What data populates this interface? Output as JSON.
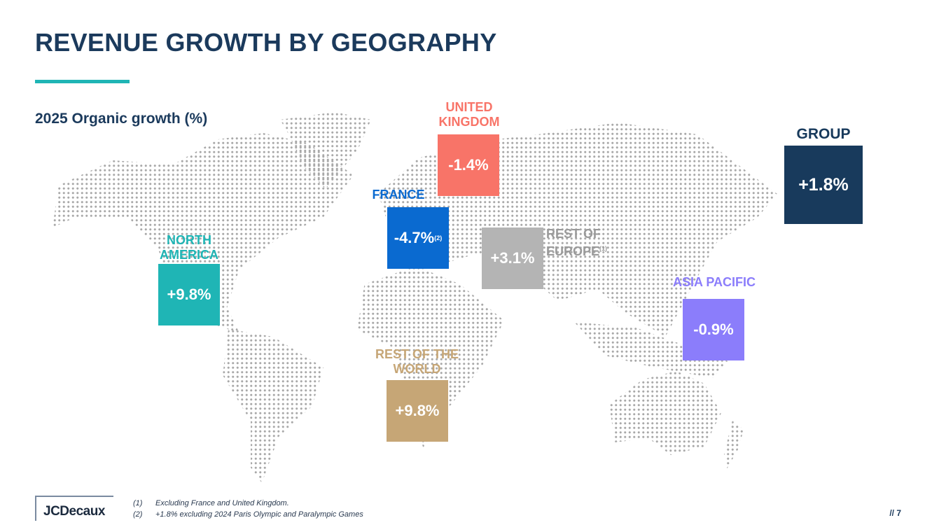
{
  "header": {
    "title": "REVENUE GROWTH BY GEOGRAPHY",
    "subtitle": "2025 Organic growth (%)"
  },
  "regions": [
    {
      "name": "UNITED KINGDOM",
      "value": "-1.4%",
      "note": "",
      "color": "#f87468"
    },
    {
      "name": "FRANCE",
      "value": "-4.7%",
      "note": "(2)",
      "color": "#0a6ad0"
    },
    {
      "name": "REST OF EUROPE",
      "value": "+3.1%",
      "note": "(1)",
      "color": "#b4b4b4",
      "label_color": "#9a9a9a"
    },
    {
      "name": "NORTH AMERICA",
      "value": "+9.8%",
      "note": "",
      "color": "#1fb5b5"
    },
    {
      "name": "ASIA PACIFIC",
      "value": "-0.9%",
      "note": "",
      "color": "#8b7dfb"
    },
    {
      "name": "REST OF THE WORLD",
      "value": "+9.8%",
      "note": "",
      "color": "#c6a676"
    },
    {
      "name": "GROUP",
      "value": "+1.8%",
      "note": "",
      "color": "#183a5c"
    }
  ],
  "footer": {
    "logo": "JCDecaux",
    "notes": [
      {
        "num": "(1)",
        "text": "Excluding France and United Kingdom."
      },
      {
        "num": "(2)",
        "text": "+1.8% excluding 2024 Paris Olympic and Paralympic Games"
      }
    ],
    "page": "// 7"
  }
}
